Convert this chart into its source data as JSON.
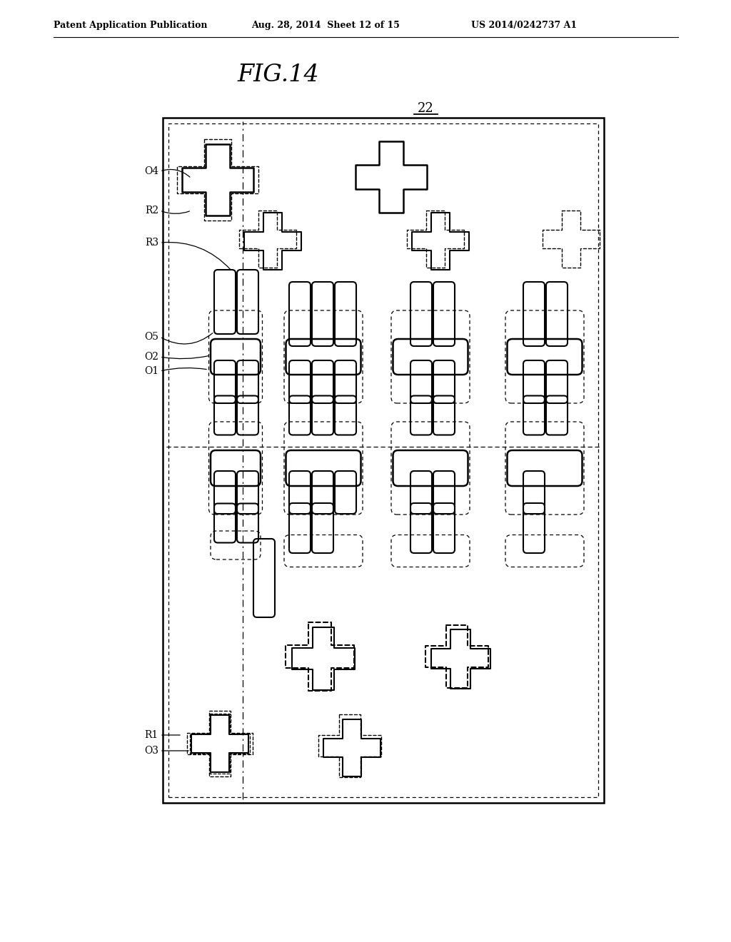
{
  "title": "FIG.14",
  "label_22": "22",
  "header_left": "Patent Application Publication",
  "header_mid": "Aug. 28, 2014  Sheet 12 of 15",
  "header_right": "US 2014/0242737 A1",
  "bg_color": "#ffffff"
}
